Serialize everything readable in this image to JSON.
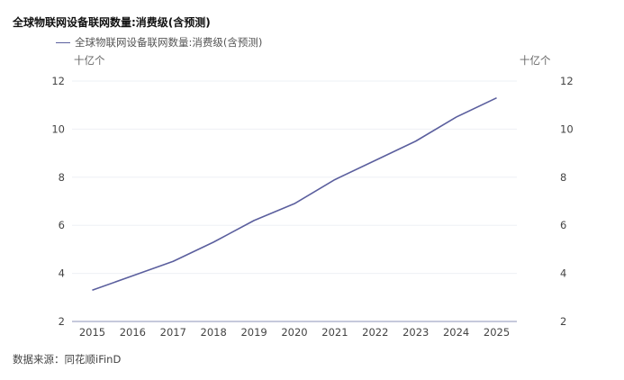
{
  "chart_data": {
    "type": "line",
    "title": "全球物联网设备联网数量:消费级(含预测)",
    "categories": [
      "2015",
      "2016",
      "2017",
      "2018",
      "2019",
      "2020",
      "2021",
      "2022",
      "2023",
      "2024",
      "2025"
    ],
    "series": [
      {
        "name": "全球物联网设备联网数量:消费级(含预测)",
        "values": [
          3.3,
          3.9,
          4.5,
          5.3,
          6.2,
          6.9,
          7.9,
          8.7,
          9.5,
          10.5,
          11.3
        ],
        "color": "#5b5f9e"
      }
    ],
    "ylabel_left": "十亿个",
    "ylabel_right": "十亿个",
    "ylim": [
      2,
      12
    ],
    "yticks": [
      2,
      4,
      6,
      8,
      10,
      12
    ],
    "grid": true,
    "legend_position": "top-left"
  },
  "source": "数据来源：同花顺iFinD"
}
